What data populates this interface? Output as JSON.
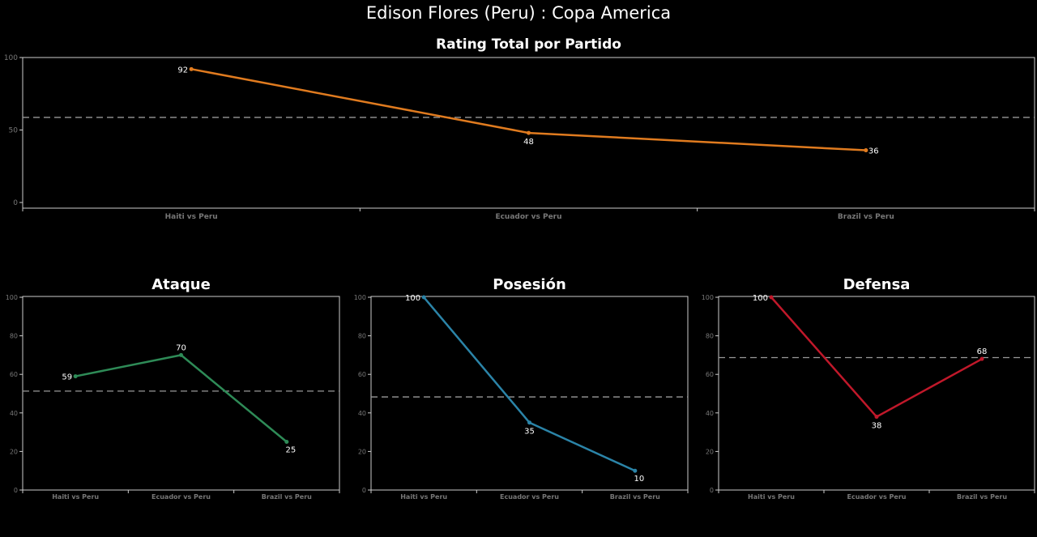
{
  "title": "Edison Flores (Peru) :  Copa  America",
  "chart_data": [
    {
      "type": "line",
      "title": "Rating Total por Partido",
      "categories": [
        "Haiti vs Peru",
        "Ecuador vs Peru",
        "Brazil vs Peru"
      ],
      "values": [
        92,
        48,
        36
      ],
      "average": 58.7,
      "ylim": [
        0,
        100
      ],
      "yticks": [
        0,
        50,
        100
      ],
      "color": "#e07b1f",
      "grid": false
    },
    {
      "type": "line",
      "title": "Ataque",
      "categories": [
        "Haiti vs Peru",
        "Ecuador vs Peru",
        "Brazil vs Peru"
      ],
      "values": [
        59,
        70,
        25
      ],
      "average": 51.3,
      "ylim": [
        0,
        100
      ],
      "yticks": [
        0,
        20,
        40,
        60,
        80,
        100
      ],
      "color": "#2e8b57",
      "grid": false
    },
    {
      "type": "line",
      "title": "Posesión",
      "categories": [
        "Haiti vs Peru",
        "Ecuador vs Peru",
        "Brazil vs Peru"
      ],
      "values": [
        100,
        35,
        10
      ],
      "average": 48.3,
      "ylim": [
        0,
        100
      ],
      "yticks": [
        0,
        20,
        40,
        60,
        80,
        100
      ],
      "color": "#2b84a8",
      "grid": false
    },
    {
      "type": "line",
      "title": "Defensa",
      "categories": [
        "Haiti vs Peru",
        "Ecuador vs Peru",
        "Brazil vs Peru"
      ],
      "values": [
        100,
        38,
        68
      ],
      "average": 68.7,
      "ylim": [
        0,
        100
      ],
      "yticks": [
        0,
        20,
        40,
        60,
        80,
        100
      ],
      "color": "#c0182a",
      "grid": false
    }
  ]
}
